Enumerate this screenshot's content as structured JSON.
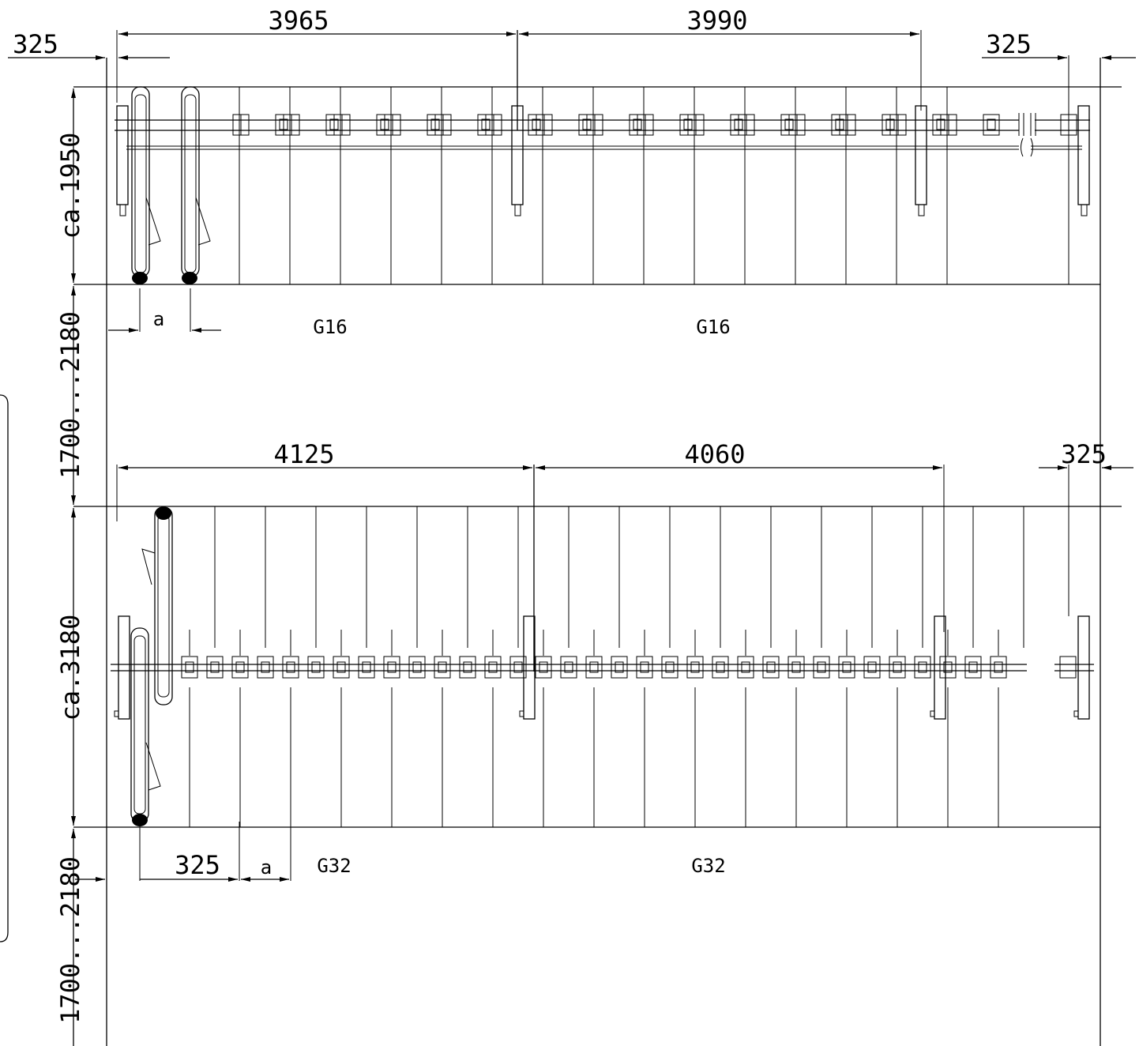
{
  "upper_rack": {
    "width_left": "3965",
    "width_right": "3990",
    "offset_left": "325",
    "offset_right": "325",
    "depth": "ca.1950",
    "pitch": "a",
    "model_left": "G16",
    "model_right": "G16"
  },
  "aisle_1": "1700...2180",
  "lower_rack": {
    "width_left": "4125",
    "width_right": "4060",
    "offset_right": "325",
    "offset_left": "325",
    "depth": "ca.3180",
    "pitch": "a",
    "model_left": "G32",
    "model_right": "G32"
  },
  "aisle_2": "1700...2180"
}
